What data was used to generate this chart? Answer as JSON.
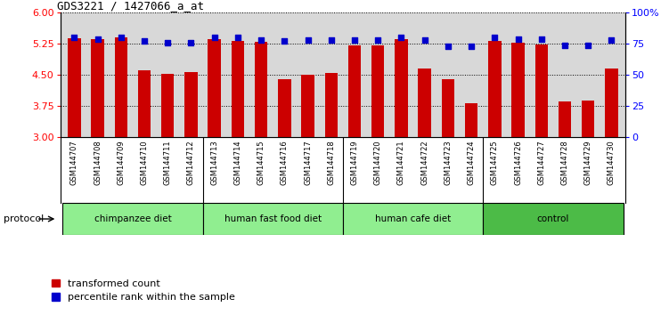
{
  "title": "GDS3221 / 1427066_a_at",
  "samples": [
    "GSM144707",
    "GSM144708",
    "GSM144709",
    "GSM144710",
    "GSM144711",
    "GSM144712",
    "GSM144713",
    "GSM144714",
    "GSM144715",
    "GSM144716",
    "GSM144717",
    "GSM144718",
    "GSM144719",
    "GSM144720",
    "GSM144721",
    "GSM144722",
    "GSM144723",
    "GSM144724",
    "GSM144725",
    "GSM144726",
    "GSM144727",
    "GSM144728",
    "GSM144729",
    "GSM144730"
  ],
  "bar_values": [
    5.38,
    5.35,
    5.4,
    4.6,
    4.52,
    4.56,
    5.35,
    5.32,
    5.3,
    4.4,
    4.5,
    4.55,
    5.22,
    5.22,
    5.36,
    4.66,
    4.4,
    3.82,
    5.32,
    5.27,
    5.24,
    3.86,
    3.88,
    4.65
  ],
  "percentile_values": [
    80,
    79,
    80,
    77,
    76,
    76,
    80,
    80,
    78,
    77,
    78,
    78,
    78,
    78,
    80,
    78,
    73,
    73,
    80,
    79,
    79,
    74,
    74,
    78
  ],
  "groups": [
    {
      "label": "chimpanzee diet",
      "start": 0,
      "end": 6
    },
    {
      "label": "human fast food diet",
      "start": 6,
      "end": 12
    },
    {
      "label": "human cafe diet",
      "start": 12,
      "end": 18
    },
    {
      "label": "control",
      "start": 18,
      "end": 24
    }
  ],
  "ylim_left": [
    3.0,
    6.0
  ],
  "ylim_right": [
    0,
    100
  ],
  "yticks_left": [
    3.0,
    3.75,
    4.5,
    5.25,
    6.0
  ],
  "yticks_right": [
    0,
    25,
    50,
    75,
    100
  ],
  "bar_color": "#CC0000",
  "dot_color": "#0000CC",
  "plot_bg_color": "#D8D8D8",
  "tick_bg_color": "#D0D0D0",
  "group_color_light": "#90EE90",
  "group_color_dark": "#4CBB47",
  "legend_red": "transformed count",
  "legend_blue": "percentile rank within the sample",
  "protocol_label": "protocol"
}
